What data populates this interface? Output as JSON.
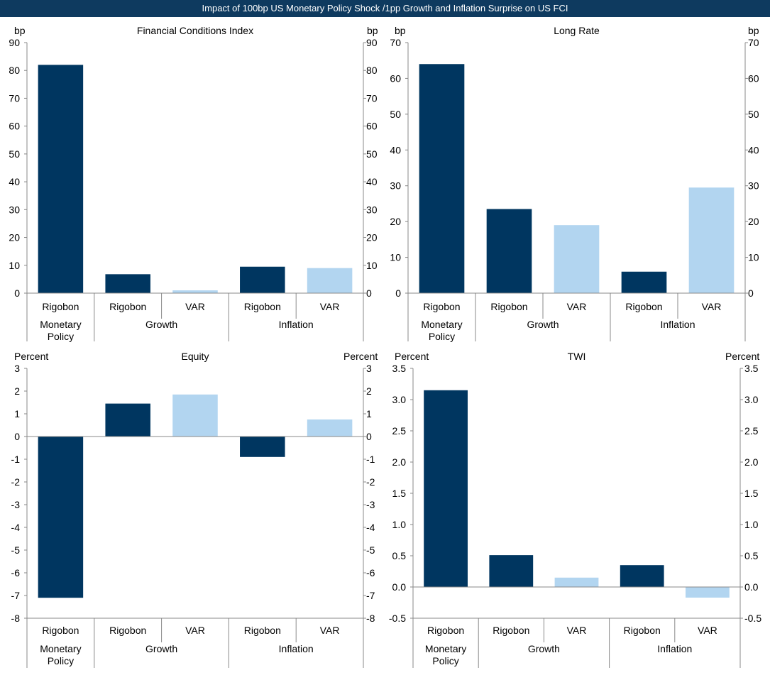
{
  "banner_title": "Impact of 100bp US Monetary Policy Shock /1pp Growth and Inflation Surprise on US FCI",
  "colors": {
    "banner": "#0e3a5f",
    "dark_bar": "#003660",
    "light_bar": "#b2d5f0",
    "axis": "#888888"
  },
  "groups": [
    {
      "name": "Monetary\nPolicy",
      "members": [
        "Rigobon"
      ]
    },
    {
      "name": "Growth",
      "members": [
        "Rigobon",
        "VAR"
      ]
    },
    {
      "name": "Inflation",
      "members": [
        "Rigobon",
        "VAR"
      ]
    }
  ],
  "chart_data": [
    {
      "type": "bar",
      "title": "Financial Conditions Index",
      "ylabel_left": "bp",
      "ylabel_right": "bp",
      "ylim": [
        0,
        90
      ],
      "yticks": [
        0,
        10,
        20,
        30,
        40,
        50,
        60,
        70,
        80,
        90
      ],
      "tick_labels": [
        "0",
        "10",
        "20",
        "30",
        "40",
        "50",
        "60",
        "70",
        "80",
        "90"
      ],
      "categories": [
        "Rigobon",
        "Rigobon",
        "VAR",
        "Rigobon",
        "VAR"
      ],
      "values": [
        82,
        6.8,
        1,
        9.5,
        9
      ],
      "series": [
        "Rigobon",
        "Rigobon",
        "VAR",
        "Rigobon",
        "VAR"
      ]
    },
    {
      "type": "bar",
      "title": "Long Rate",
      "ylabel_left": "bp",
      "ylabel_right": "bp",
      "ylim": [
        0,
        70
      ],
      "yticks": [
        0,
        10,
        20,
        30,
        40,
        50,
        60,
        70
      ],
      "tick_labels": [
        "0",
        "10",
        "20",
        "30",
        "40",
        "50",
        "60",
        "70"
      ],
      "categories": [
        "Rigobon",
        "Rigobon",
        "VAR",
        "Rigobon",
        "VAR"
      ],
      "values": [
        64,
        23.5,
        19,
        6,
        29.5
      ],
      "series": [
        "Rigobon",
        "Rigobon",
        "VAR",
        "Rigobon",
        "VAR"
      ]
    },
    {
      "type": "bar",
      "title": "Equity",
      "ylabel_left": "Percent",
      "ylabel_right": "Percent",
      "ylim": [
        -8,
        3
      ],
      "yticks": [
        -8,
        -7,
        -6,
        -5,
        -4,
        -3,
        -2,
        -1,
        0,
        1,
        2,
        3
      ],
      "tick_labels": [
        "-8",
        "-7",
        "-6",
        "-5",
        "-4",
        "-3",
        "-2",
        "-1",
        "0",
        "1",
        "2",
        "3"
      ],
      "categories": [
        "Rigobon",
        "Rigobon",
        "VAR",
        "Rigobon",
        "VAR"
      ],
      "values": [
        -7.1,
        1.45,
        1.85,
        -0.9,
        0.75
      ],
      "series": [
        "Rigobon",
        "Rigobon",
        "VAR",
        "Rigobon",
        "VAR"
      ]
    },
    {
      "type": "bar",
      "title": "TWI",
      "ylabel_left": "Percent",
      "ylabel_right": "Percent",
      "ylim": [
        -0.5,
        3.5
      ],
      "yticks": [
        -0.5,
        0,
        0.5,
        1,
        1.5,
        2,
        2.5,
        3,
        3.5
      ],
      "tick_labels": [
        "-0.5",
        "0.0",
        "0.5",
        "1.0",
        "1.5",
        "2.0",
        "2.5",
        "3.0",
        "3.5"
      ],
      "categories": [
        "Rigobon",
        "Rigobon",
        "VAR",
        "Rigobon",
        "VAR"
      ],
      "values": [
        3.15,
        0.51,
        0.15,
        0.35,
        -0.17
      ],
      "series": [
        "Rigobon",
        "Rigobon",
        "VAR",
        "Rigobon",
        "VAR"
      ]
    }
  ]
}
